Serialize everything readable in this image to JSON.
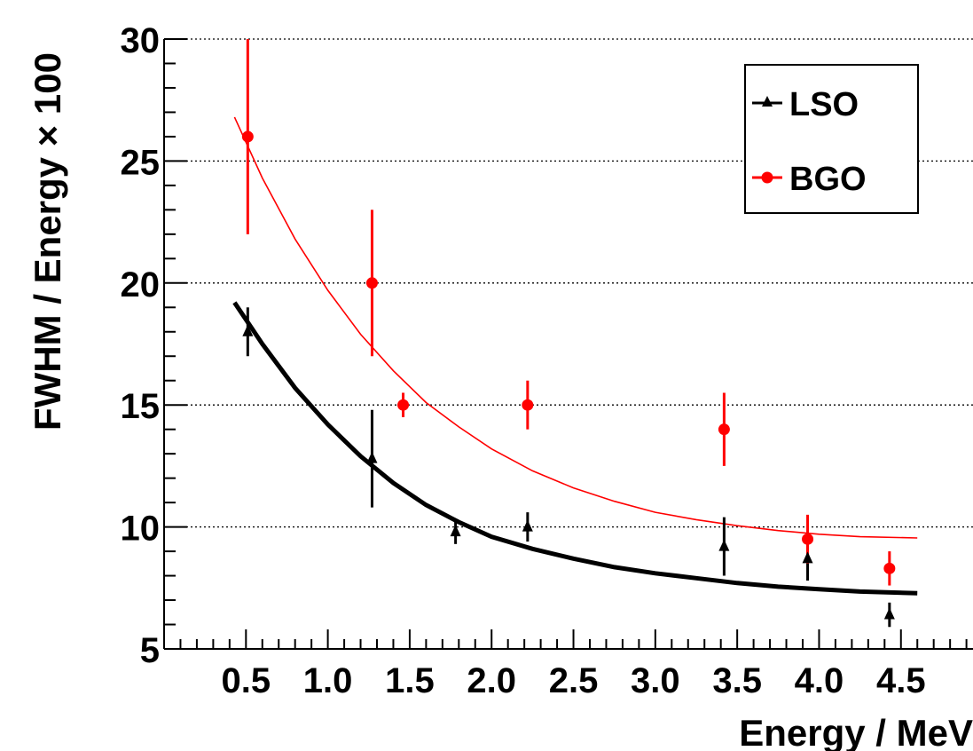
{
  "chart_data": {
    "type": "scatter",
    "xlabel": "Energy / MeV",
    "ylabel": "FWHM / Energy × 100",
    "xlim": [
      0.0,
      4.94
    ],
    "ylim": [
      5,
      30
    ],
    "x_ticks": [
      0.5,
      1.0,
      1.5,
      2.0,
      2.5,
      3.0,
      3.5,
      4.0,
      4.5
    ],
    "x_tick_labels": [
      "0.5",
      "1.0",
      "1.5",
      "2.0",
      "2.5",
      "3.0",
      "3.5",
      "4.0",
      "4.5"
    ],
    "y_ticks": [
      5,
      10,
      15,
      20,
      25,
      30
    ],
    "y_tick_labels": [
      "5",
      "10",
      "15",
      "20",
      "25",
      "30"
    ],
    "grid": "horizontal dotted",
    "legend": {
      "placement": "top-right",
      "entries": [
        {
          "label": "LSO",
          "marker": "triangle",
          "color": "#000000"
        },
        {
          "label": "BGO",
          "marker": "circle",
          "color": "#ff0000"
        }
      ]
    },
    "series": [
      {
        "name": "LSO",
        "marker": "triangle",
        "color": "#000000",
        "points": [
          {
            "x": 0.511,
            "y": 18.0,
            "ylo": 17.0,
            "yhi": 19.0
          },
          {
            "x": 1.27,
            "y": 12.8,
            "ylo": 10.8,
            "yhi": 14.8
          },
          {
            "x": 1.78,
            "y": 9.8,
            "ylo": 9.3,
            "yhi": 10.3
          },
          {
            "x": 2.22,
            "y": 10.0,
            "ylo": 9.4,
            "yhi": 10.6
          },
          {
            "x": 3.42,
            "y": 9.2,
            "ylo": 8.0,
            "yhi": 10.4
          },
          {
            "x": 3.93,
            "y": 8.7,
            "ylo": 7.8,
            "yhi": 9.6
          },
          {
            "x": 4.43,
            "y": 6.4,
            "ylo": 5.9,
            "yhi": 6.9
          }
        ],
        "fit": [
          {
            "x": 0.43,
            "y": 19.2
          },
          {
            "x": 0.6,
            "y": 17.5
          },
          {
            "x": 0.8,
            "y": 15.7
          },
          {
            "x": 1.0,
            "y": 14.2
          },
          {
            "x": 1.2,
            "y": 12.9
          },
          {
            "x": 1.4,
            "y": 11.8
          },
          {
            "x": 1.6,
            "y": 10.9
          },
          {
            "x": 1.8,
            "y": 10.2
          },
          {
            "x": 2.0,
            "y": 9.6
          },
          {
            "x": 2.25,
            "y": 9.1
          },
          {
            "x": 2.5,
            "y": 8.7
          },
          {
            "x": 2.75,
            "y": 8.35
          },
          {
            "x": 3.0,
            "y": 8.1
          },
          {
            "x": 3.25,
            "y": 7.9
          },
          {
            "x": 3.5,
            "y": 7.7
          },
          {
            "x": 3.75,
            "y": 7.55
          },
          {
            "x": 4.0,
            "y": 7.45
          },
          {
            "x": 4.25,
            "y": 7.35
          },
          {
            "x": 4.6,
            "y": 7.28
          }
        ]
      },
      {
        "name": "BGO",
        "marker": "circle",
        "color": "#ff0000",
        "points": [
          {
            "x": 0.511,
            "y": 26.0,
            "ylo": 22.0,
            "yhi": 30.0
          },
          {
            "x": 1.27,
            "y": 20.0,
            "ylo": 17.0,
            "yhi": 23.0
          },
          {
            "x": 1.46,
            "y": 15.0,
            "ylo": 14.5,
            "yhi": 15.5
          },
          {
            "x": 2.22,
            "y": 15.0,
            "ylo": 14.0,
            "yhi": 16.0
          },
          {
            "x": 3.42,
            "y": 14.0,
            "ylo": 12.5,
            "yhi": 15.5
          },
          {
            "x": 3.93,
            "y": 9.5,
            "ylo": 8.5,
            "yhi": 10.5
          },
          {
            "x": 4.43,
            "y": 8.3,
            "ylo": 7.6,
            "yhi": 9.0
          }
        ],
        "fit": [
          {
            "x": 0.43,
            "y": 26.8
          },
          {
            "x": 0.6,
            "y": 24.3
          },
          {
            "x": 0.8,
            "y": 21.8
          },
          {
            "x": 1.0,
            "y": 19.7
          },
          {
            "x": 1.2,
            "y": 17.9
          },
          {
            "x": 1.4,
            "y": 16.4
          },
          {
            "x": 1.6,
            "y": 15.1
          },
          {
            "x": 1.8,
            "y": 14.1
          },
          {
            "x": 2.0,
            "y": 13.2
          },
          {
            "x": 2.25,
            "y": 12.3
          },
          {
            "x": 2.5,
            "y": 11.6
          },
          {
            "x": 2.75,
            "y": 11.05
          },
          {
            "x": 3.0,
            "y": 10.6
          },
          {
            "x": 3.25,
            "y": 10.3
          },
          {
            "x": 3.5,
            "y": 10.05
          },
          {
            "x": 3.75,
            "y": 9.85
          },
          {
            "x": 4.0,
            "y": 9.7
          },
          {
            "x": 4.25,
            "y": 9.6
          },
          {
            "x": 4.6,
            "y": 9.55
          }
        ]
      }
    ]
  }
}
